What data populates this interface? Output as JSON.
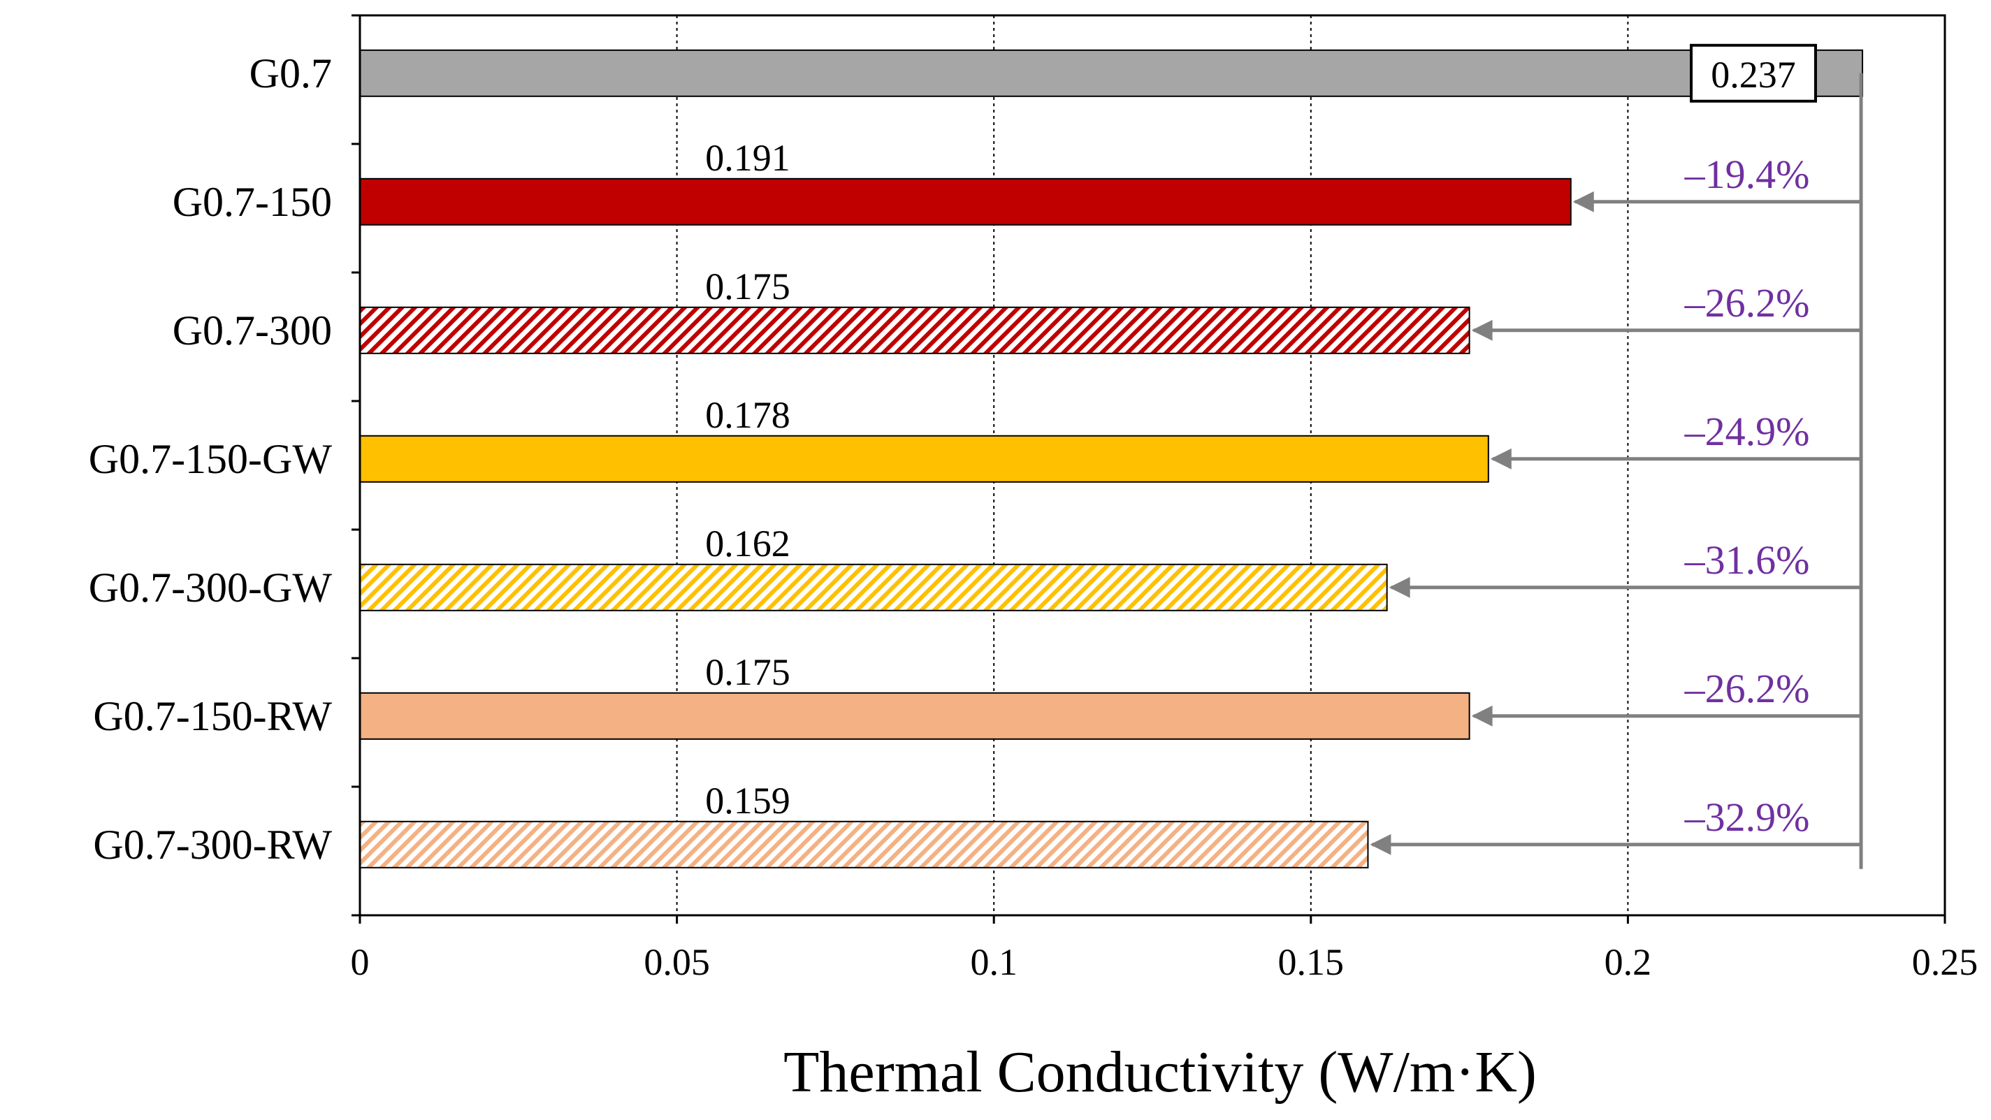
{
  "chart_data": {
    "type": "bar",
    "orientation": "horizontal",
    "title": "",
    "xlabel": "Thermal Conductivity (W/m·K)",
    "ylabel": "",
    "xlim": [
      0,
      0.25
    ],
    "x_ticks": [
      0,
      0.05,
      0.1,
      0.15,
      0.2,
      0.25
    ],
    "x_tick_labels": [
      "0",
      "0.05",
      "0.1",
      "0.15",
      "0.2",
      "0.25"
    ],
    "grid": "vertical dotted",
    "reference_value": 0.237,
    "bars": [
      {
        "name": "G0.7",
        "value": 0.237,
        "value_label": "0.237",
        "change": "",
        "color": "#A6A6A6",
        "pattern": "solid"
      },
      {
        "name": "G0.7-150",
        "value": 0.191,
        "value_label": "0.191",
        "change": "–19.4%",
        "color": "#C00000",
        "pattern": "solid"
      },
      {
        "name": "G0.7-300",
        "value": 0.175,
        "value_label": "0.175",
        "change": "–26.2%",
        "color": "#C00000",
        "pattern": "hatched"
      },
      {
        "name": "G0.7-150-GW",
        "value": 0.178,
        "value_label": "0.178",
        "change": "–24.9%",
        "color": "#FFC000",
        "pattern": "solid"
      },
      {
        "name": "G0.7-300-GW",
        "value": 0.162,
        "value_label": "0.162",
        "change": "–31.6%",
        "color": "#FFC000",
        "pattern": "hatched"
      },
      {
        "name": "G0.7-150-RW",
        "value": 0.175,
        "value_label": "0.175",
        "change": "–26.2%",
        "color": "#F4B183",
        "pattern": "solid"
      },
      {
        "name": "G0.7-300-RW",
        "value": 0.159,
        "value_label": "0.159",
        "change": "–32.9%",
        "color": "#F4B183",
        "pattern": "hatched"
      }
    ],
    "colors": {
      "arrow": "#808080",
      "percent_text": "#7030A0"
    }
  }
}
